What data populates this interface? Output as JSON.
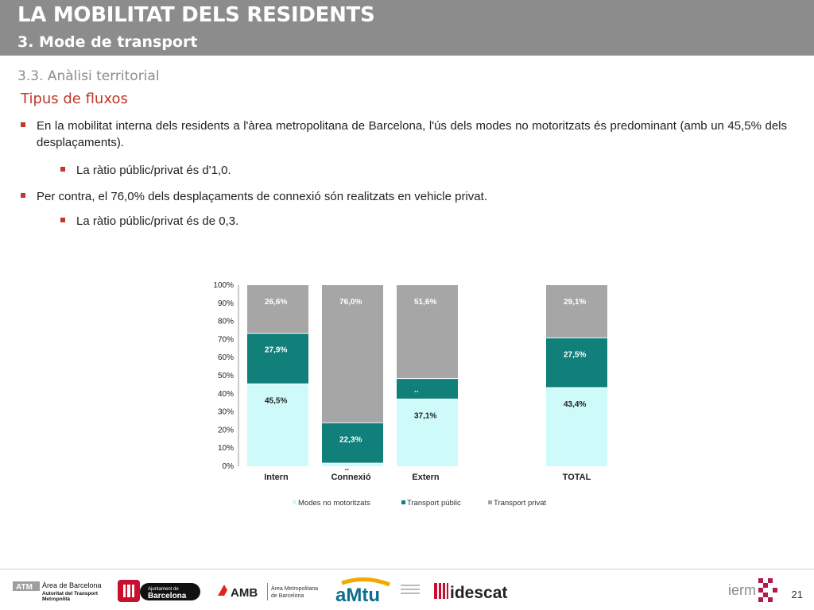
{
  "header": {
    "title": "LA MOBILITAT DELS RESIDENTS",
    "subtitle": "3. Mode de transport"
  },
  "section_title": "3.3. Anàlisi territorial",
  "heading": "Tipus de fluxos",
  "bullets": [
    "En la mobilitat interna dels residents a l'àrea metropolitana de Barcelona, l'ús dels modes no motoritzats és predominant (amb un 45,5% dels desplaçaments).",
    "La ràtio públic/privat és d'1,0.",
    "Per contra, el 76,0% dels desplaçaments de connexió són realitzats en vehicle privat.",
    "La ràtio públic/privat és de 0,3."
  ],
  "colors": {
    "header_bg": "#8c8c8c",
    "accent_red": "#c0392b",
    "modes_no_motoritzats": "#cffafa",
    "transport_public": "#117f7a",
    "transport_privat": "#a6a6a6"
  },
  "chart_data": {
    "type": "bar",
    "stacked": true,
    "percent": true,
    "categories": [
      "Intern",
      "Connexió",
      "Extern",
      "TOTAL"
    ],
    "ylim": [
      0,
      100
    ],
    "yticks": [
      "0%",
      "10%",
      "20%",
      "30%",
      "40%",
      "50%",
      "60%",
      "70%",
      "80%",
      "90%",
      "100%"
    ],
    "grid": false,
    "legend_position": "bottom",
    "series": [
      {
        "name": "Modes no motoritzats",
        "values": [
          45.5,
          1.7,
          37.1,
          43.4
        ],
        "labels": [
          "45,5%",
          "..",
          "37,1%",
          "43,4%"
        ]
      },
      {
        "name": "Transport públic",
        "values": [
          27.9,
          22.3,
          11.3,
          27.5
        ],
        "labels": [
          "27,9%",
          "22,3%",
          "..",
          "27,5%"
        ]
      },
      {
        "name": "Transport privat",
        "values": [
          26.6,
          76.0,
          51.6,
          29.1
        ],
        "labels": [
          "26,6%",
          "76,0%",
          "51,6%",
          "29,1%"
        ]
      }
    ]
  },
  "footer": {
    "logos": [
      "Àrea de Barcelona Autoritat del Transport Metropolità",
      "Ajuntament de Barcelona",
      "AMB Àrea Metropolitana de Barcelona",
      "AMTU",
      "idescat",
      "iermb"
    ],
    "atm_text": "ATM",
    "atm_line1": "Àrea de Barcelona",
    "atm_line2": "Autoritat del Transport",
    "atm_line3": "Metropolità",
    "ajuntament_line1": "Ajuntament de",
    "ajuntament_line2": "Barcelona",
    "amb_text": "AMB",
    "amb_line1": "Àrea Metropolitana",
    "amb_line2": "de Barcelona",
    "amtu_text": "aMtu",
    "idescat_text": "idescat",
    "iermb_text": "ierm",
    "page_number": "21"
  }
}
